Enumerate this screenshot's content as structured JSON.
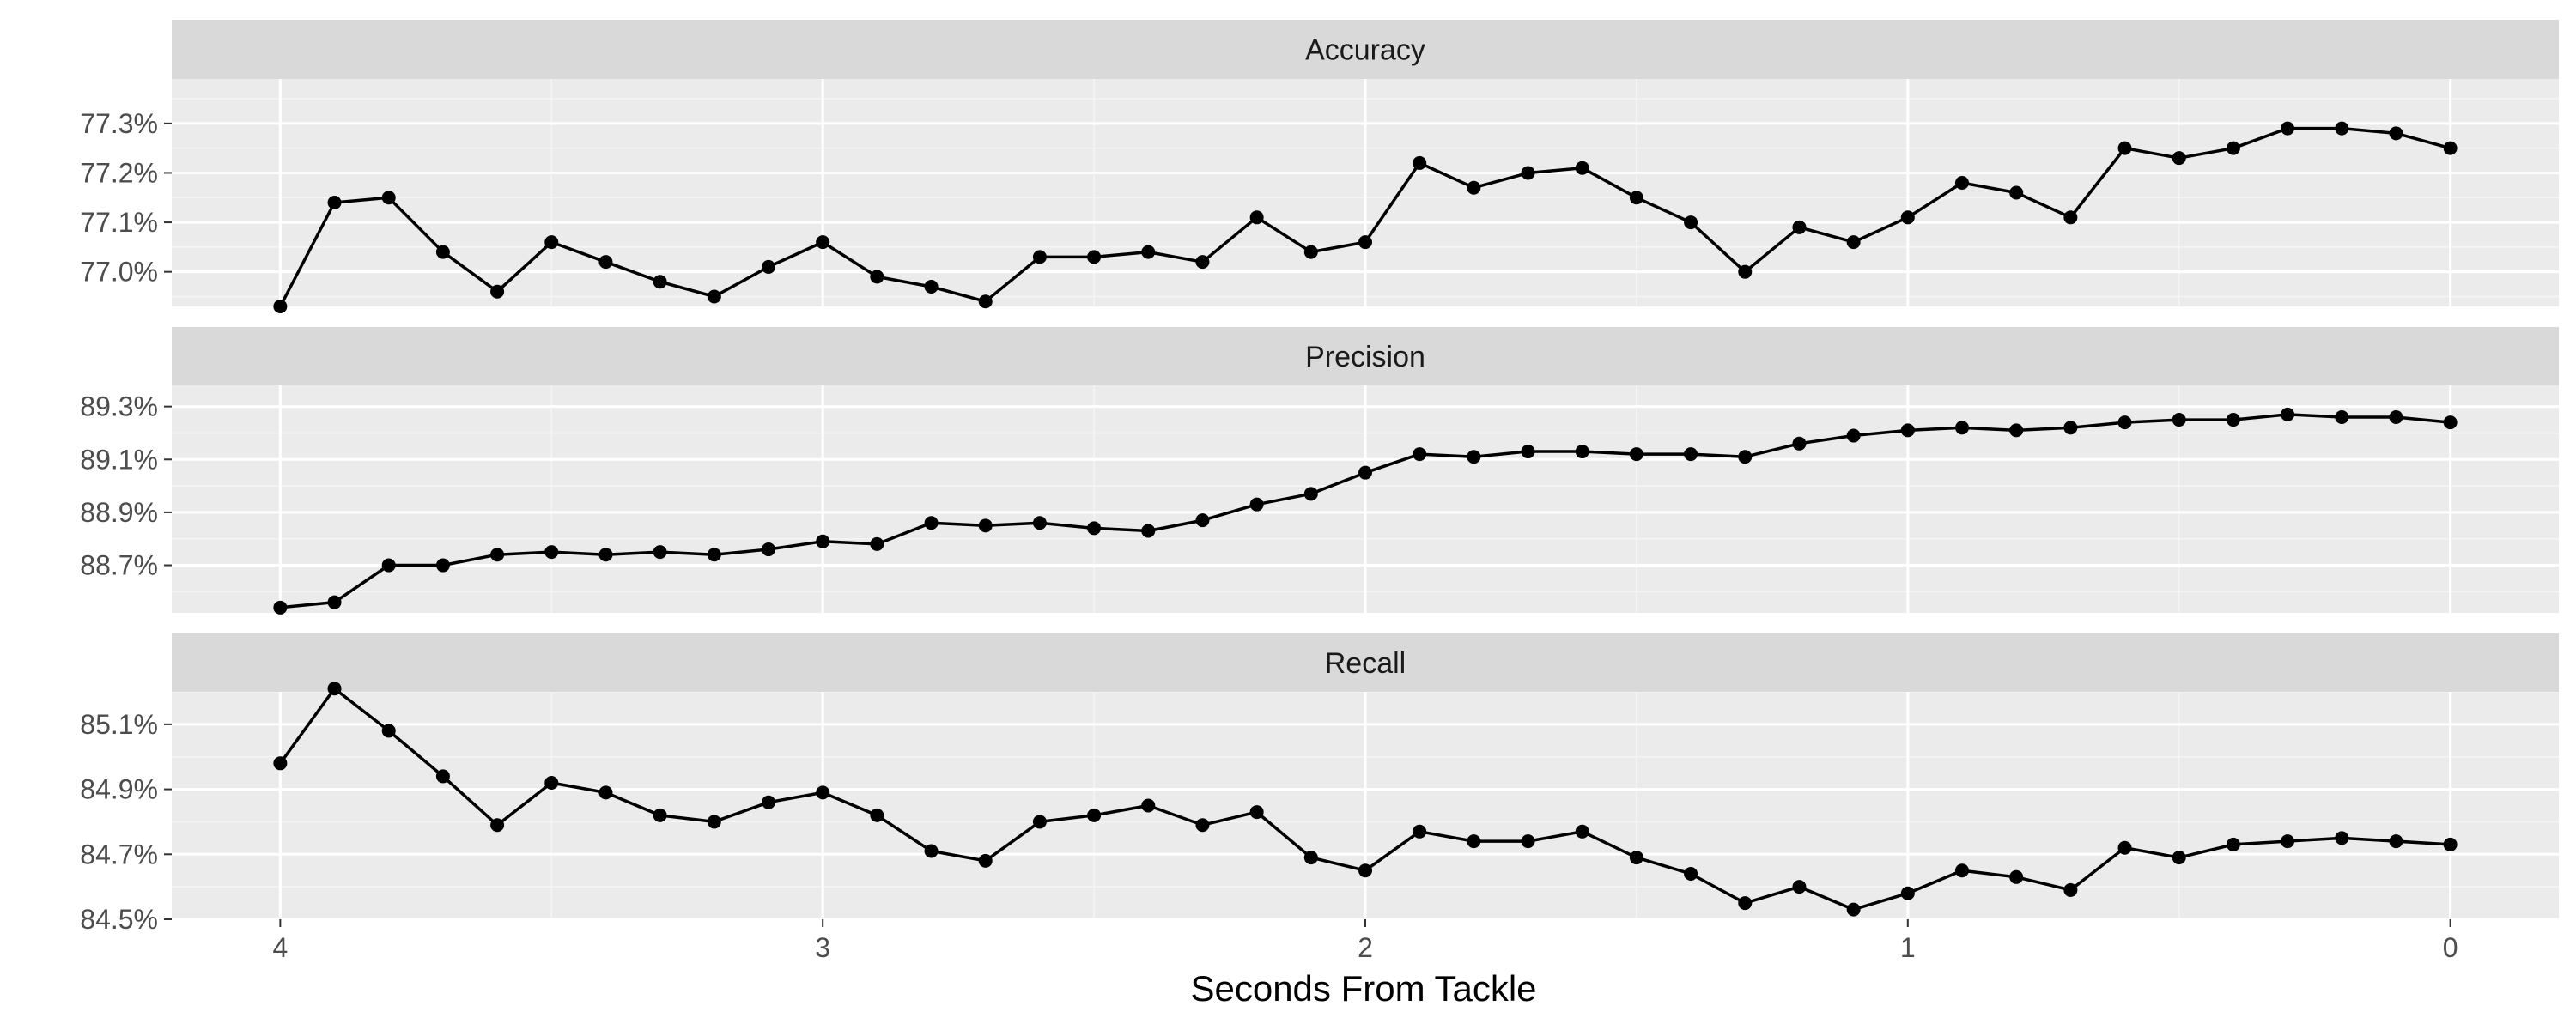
{
  "chart_data": {
    "type": "line",
    "layout": "faceted",
    "xlabel": "Seconds From Tackle",
    "x_reversed": true,
    "xlim": [
      4.2,
      -0.2
    ],
    "x_ticks": [
      4,
      3,
      2,
      1,
      0
    ],
    "x": [
      4.0,
      3.9,
      3.8,
      3.7,
      3.6,
      3.5,
      3.4,
      3.3,
      3.2,
      3.1,
      3.0,
      2.9,
      2.8,
      2.7,
      2.6,
      2.5,
      2.4,
      2.3,
      2.2,
      2.1,
      2.0,
      1.9,
      1.8,
      1.7,
      1.6,
      1.5,
      1.4,
      1.3,
      1.2,
      1.1,
      1.0,
      0.9,
      0.8,
      0.7,
      0.6,
      0.5,
      0.4,
      0.3,
      0.2,
      0.1,
      0.0
    ],
    "panels": [
      {
        "name": "Accuracy",
        "ylim": [
          76.93,
          77.39
        ],
        "y_ticks": [
          77.0,
          77.1,
          77.2,
          77.3
        ],
        "y_tick_labels": [
          "77.0%",
          "77.1%",
          "77.2%",
          "77.3%"
        ],
        "values": [
          76.93,
          77.14,
          77.15,
          77.04,
          76.96,
          77.06,
          77.02,
          76.98,
          76.95,
          77.01,
          77.06,
          76.99,
          76.97,
          76.94,
          77.03,
          77.03,
          77.04,
          77.02,
          77.11,
          77.04,
          77.06,
          77.22,
          77.17,
          77.2,
          77.21,
          77.15,
          77.1,
          77.0,
          77.09,
          77.06,
          77.11,
          77.18,
          77.16,
          77.11,
          77.25,
          77.23,
          77.25,
          77.29,
          77.29,
          77.28,
          77.25
        ]
      },
      {
        "name": "Precision",
        "ylim": [
          88.52,
          89.38
        ],
        "y_ticks": [
          88.7,
          88.9,
          89.1,
          89.3
        ],
        "y_tick_labels": [
          "88.7%",
          "88.9%",
          "89.1%",
          "89.3%"
        ],
        "values": [
          88.54,
          88.56,
          88.7,
          88.7,
          88.74,
          88.75,
          88.74,
          88.75,
          88.74,
          88.76,
          88.79,
          88.78,
          88.86,
          88.85,
          88.86,
          88.84,
          88.83,
          88.87,
          88.93,
          88.97,
          89.05,
          89.12,
          89.11,
          89.13,
          89.13,
          89.12,
          89.12,
          89.11,
          89.16,
          89.19,
          89.21,
          89.22,
          89.21,
          89.22,
          89.24,
          89.25,
          89.25,
          89.27,
          89.26,
          89.26,
          89.24
        ]
      },
      {
        "name": "Recall",
        "ylim": [
          84.5,
          85.2
        ],
        "y_ticks": [
          84.5,
          84.7,
          84.9,
          85.1
        ],
        "y_tick_labels": [
          "84.5%",
          "84.7%",
          "84.9%",
          "85.1%"
        ],
        "values": [
          84.98,
          85.21,
          85.08,
          84.94,
          84.79,
          84.92,
          84.89,
          84.82,
          84.8,
          84.86,
          84.89,
          84.82,
          84.71,
          84.68,
          84.8,
          84.82,
          84.85,
          84.79,
          84.83,
          84.69,
          84.65,
          84.77,
          84.74,
          84.74,
          84.77,
          84.69,
          84.64,
          84.55,
          84.6,
          84.53,
          84.58,
          84.65,
          84.63,
          84.59,
          84.72,
          84.69,
          84.73,
          84.74,
          84.75,
          84.74,
          84.73
        ]
      }
    ],
    "colors": {
      "panel_bg": "#ebebeb",
      "grid_major": "#ffffff",
      "grid_minor": "#f5f5f5",
      "strip_bg": "#d9d9d9",
      "line": "#000000",
      "point": "#000000"
    }
  }
}
